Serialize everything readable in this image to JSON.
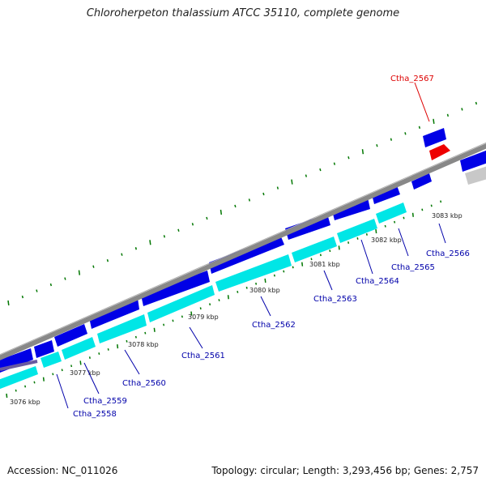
{
  "title": "Chloroherpeton thalassium ATCC 35110, complete genome",
  "accession": "Accession: NC_011026",
  "summary": "Topology: circular; Length: 3,293,456 bp; Genes: 2,757",
  "colors": {
    "forward_gene": "#0000e6",
    "reverse_gene": "#00e6e6",
    "highlight_gene": "#ee0000",
    "backbone": "#888888",
    "tick": "#007700",
    "label_blue": "#0000aa",
    "label_red": "#dd0000",
    "other_gene": "#c8c8c8"
  },
  "kbp_ticks": [
    {
      "text": "3076 kbp"
    },
    {
      "text": "3077 kbp"
    },
    {
      "text": "3078 kbp"
    },
    {
      "text": "3079 kbp"
    },
    {
      "text": "3080 kbp"
    },
    {
      "text": "3081 kbp"
    },
    {
      "text": "3082 kbp"
    },
    {
      "text": "3083 kbp"
    }
  ],
  "genes": [
    {
      "name": "Ctha_2558"
    },
    {
      "name": "Ctha_2559"
    },
    {
      "name": "Ctha_2560"
    },
    {
      "name": "Ctha_2561"
    },
    {
      "name": "Ctha_2562"
    },
    {
      "name": "Ctha_2563"
    },
    {
      "name": "Ctha_2564"
    },
    {
      "name": "Ctha_2565"
    },
    {
      "name": "Ctha_2566"
    },
    {
      "name": "Ctha_2567"
    }
  ]
}
